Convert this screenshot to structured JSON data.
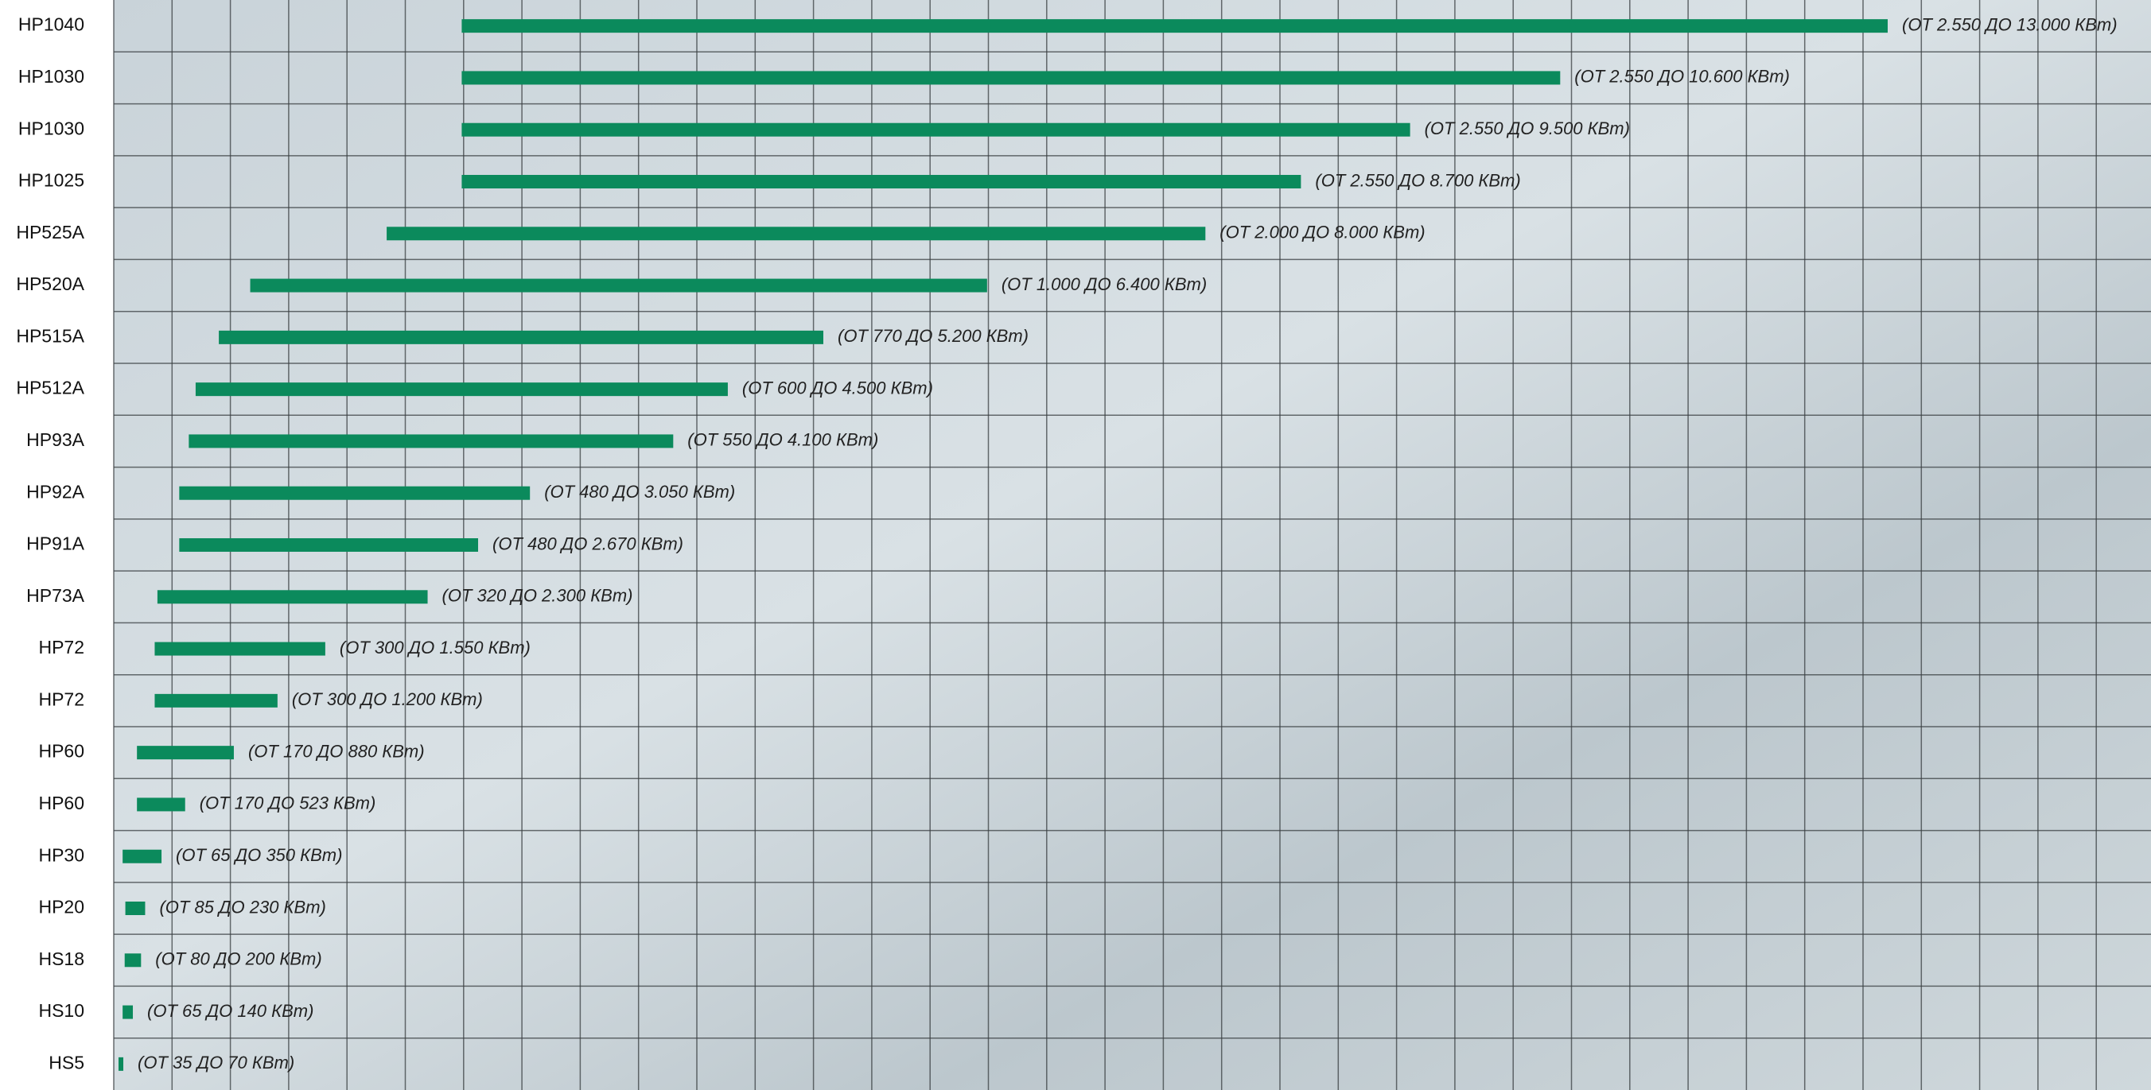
{
  "chart_data": {
    "type": "range-bar",
    "color": "#0b8a5c",
    "categories": [
      "HP1040",
      "HP1030",
      "HP1030",
      "HP1025",
      "HP525A",
      "HP520A",
      "HP515A",
      "HP512A",
      "HP93A",
      "HP92A",
      "HP91A",
      "HP73A",
      "HP72",
      "HP72",
      "HP60",
      "HP60",
      "HP30",
      "HP20",
      "HS18",
      "HS10",
      "HS5"
    ],
    "low": [
      2550,
      2550,
      2550,
      2550,
      2000,
      1000,
      770,
      600,
      550,
      480,
      480,
      320,
      300,
      300,
      170,
      170,
      65,
      85,
      80,
      65,
      35
    ],
    "high": [
      13000,
      10600,
      9500,
      8700,
      8000,
      6400,
      5200,
      4500,
      4100,
      3050,
      2670,
      2300,
      1550,
      1200,
      880,
      523,
      350,
      230,
      200,
      140,
      70
    ],
    "value_labels": [
      "(ОТ 2.550 ДО 13.000 КВт)",
      "(ОТ 2.550 ДО 10.600 КВт)",
      "(ОТ 2.550 ДО 9.500 КВт)",
      "(ОТ 2.550 ДО 8.700 КВт)",
      "(ОТ 2.000 ДО 8.000 КВт)",
      "(ОТ 1.000 ДО 6.400 КВт)",
      "(ОТ 770 ДО 5.200 КВт)",
      "(ОТ 600 ДО 4.500 КВт)",
      "(ОТ 550 ДО 4.100 КВт)",
      "(ОТ 480 ДО 3.050 КВт)",
      "(ОТ 480 ДО 2.670 КВт)",
      "(ОТ 320 ДО 2.300 КВт)",
      "(ОТ 300 ДО 1.550 КВт)",
      "(ОТ 300 ДО 1.200 КВт)",
      "(ОТ 170 ДО 880 КВт)",
      "(ОТ 170 ДО 523 КВт)",
      "(ОТ 65 ДО 350 КВт)",
      "(ОТ 85 ДО 230 КВт)",
      "(ОТ 80 ДО 200 КВт)",
      "(ОТ 65 ДО 140 КВт)",
      "(ОТ 35 ДО 70 КВт)"
    ],
    "grid": true
  }
}
